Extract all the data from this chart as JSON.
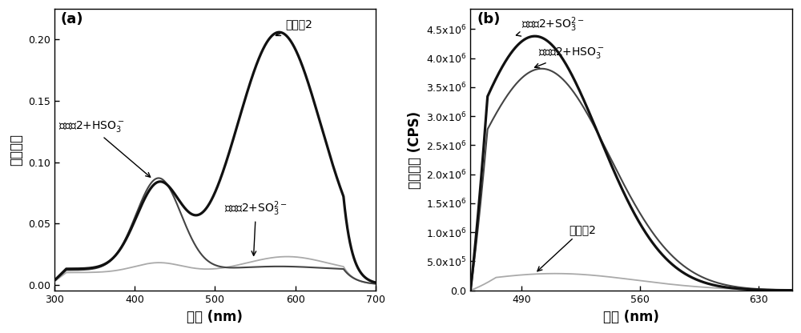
{
  "panel_a": {
    "xlabel": "波长 (nm)",
    "ylabel": "吸收强度",
    "label": "(a)",
    "xlim": [
      300,
      700
    ],
    "ylim": [
      -0.005,
      0.225
    ],
    "yticks": [
      0.0,
      0.05,
      0.1,
      0.15,
      0.2
    ],
    "xticks": [
      300,
      400,
      500,
      600,
      700
    ]
  },
  "panel_b": {
    "xlabel": "波长 (nm)",
    "ylabel": "荧光强度 (CPS)",
    "label": "(b)",
    "xlim": [
      460,
      650
    ],
    "ylim": [
      -10000.0,
      4850000.0
    ],
    "xticks": [
      490,
      560,
      630
    ],
    "ytick_values": [
      0.0,
      500000.0,
      1000000.0,
      1500000.0,
      2000000.0,
      2500000.0,
      3000000.0,
      3500000.0,
      4000000.0,
      4500000.0
    ],
    "ytick_labels": [
      "0.0",
      "5.0x10^5",
      "1.0x10^6",
      "1.5x10^6",
      "2.0x10^6",
      "2.5x10^6",
      "3.0x10^6",
      "3.5x10^6",
      "4.0x10^6",
      "4.5x10^6"
    ]
  },
  "background_color": "#ffffff",
  "font_size": 10,
  "label_fontsize": 12,
  "tick_fontsize": 9,
  "annot_fontsize": 10
}
